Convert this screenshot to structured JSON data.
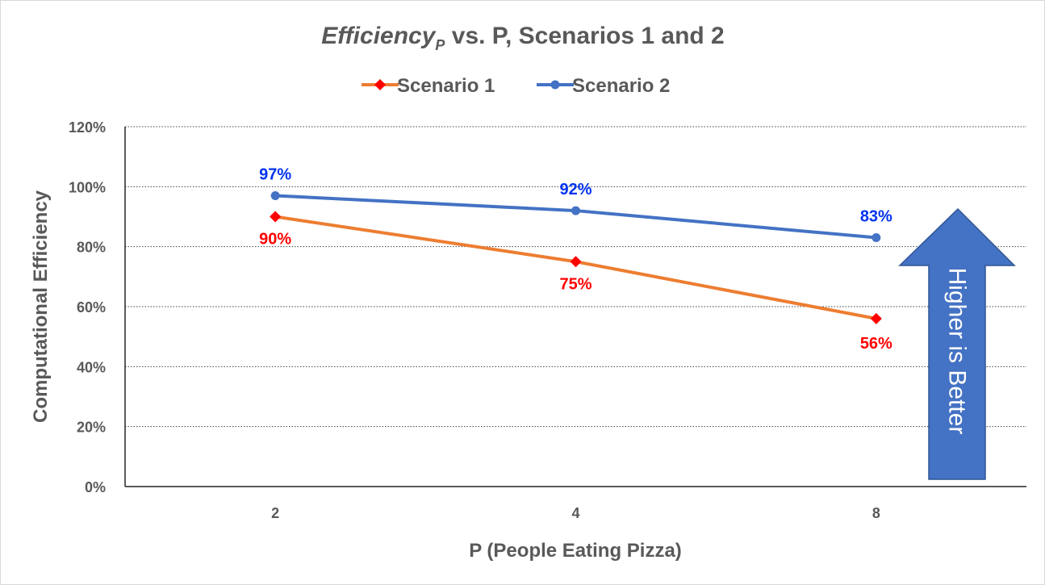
{
  "chart_data": {
    "type": "line",
    "title": {
      "main": "Efficiency",
      "subscript": "P",
      "rest": " vs. P, Scenarios 1 and 2"
    },
    "xlabel": "P (People Eating Pizza)",
    "ylabel": "Computational Efficiency",
    "categories": [
      "2",
      "4",
      "8"
    ],
    "ylim": [
      0,
      1.2
    ],
    "y_ticks": [
      0,
      0.2,
      0.4,
      0.6,
      0.8,
      1.0,
      1.2
    ],
    "y_tick_labels": [
      "0%",
      "20%",
      "40%",
      "60%",
      "80%",
      "100%",
      "120%"
    ],
    "grid": true,
    "legend_position": "top",
    "series": [
      {
        "name": "Scenario 1",
        "values": [
          0.9,
          0.75,
          0.56
        ],
        "labels": [
          "90%",
          "75%",
          "56%"
        ],
        "line_color": "#ED7D31",
        "marker": "diamond",
        "marker_color": "#FF0000",
        "label_color": "#FF0000"
      },
      {
        "name": "Scenario 2",
        "values": [
          0.97,
          0.92,
          0.83
        ],
        "labels": [
          "97%",
          "92%",
          "83%"
        ],
        "line_color": "#4472C4",
        "marker": "circle",
        "marker_color": "#4472C4",
        "label_color": "#0033EE"
      }
    ],
    "annotation": {
      "text": "Higher is Better",
      "fill": "#4472C4",
      "stroke": "#2F5597"
    }
  }
}
